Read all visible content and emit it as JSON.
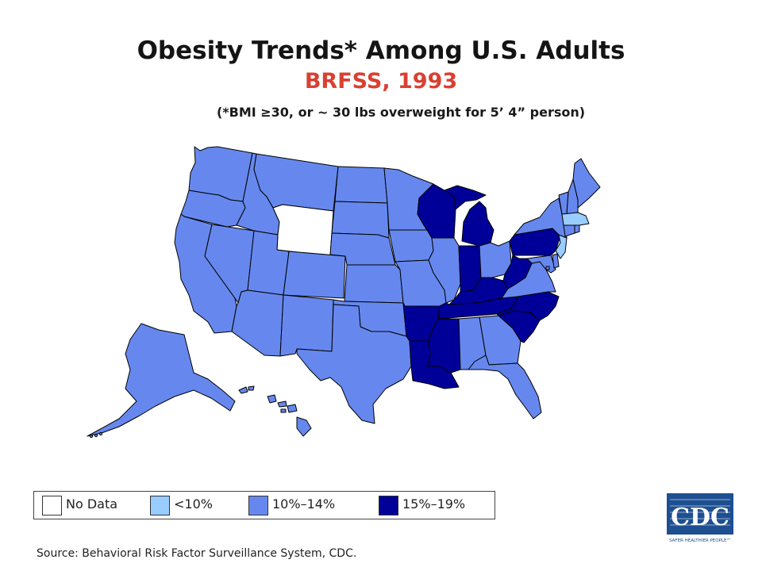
{
  "title": "Obesity Trends* Among U.S. Adults",
  "subtitle": "BRFSS, 1993",
  "note": "(*BMI ≥30, or ~ 30 lbs overweight for 5’ 4” person)",
  "legend": [
    {
      "label": "No Data",
      "color": "#ffffff"
    },
    {
      "label": "<10%",
      "color": "#99ccff"
    },
    {
      "label": "10%–14%",
      "color": "#6688ee"
    },
    {
      "label": "15%–19%",
      "color": "#000099"
    }
  ],
  "categories": {
    "no_data": "#ffffff",
    "lt10": "#99ccff",
    "p10_14": "#6688ee",
    "p15_19": "#000099"
  },
  "states": {
    "WA": "p10_14",
    "OR": "p10_14",
    "CA": "p10_14",
    "NV": "p10_14",
    "ID": "p10_14",
    "MT": "p10_14",
    "WY": "no_data",
    "UT": "p10_14",
    "CO": "p10_14",
    "AZ": "p10_14",
    "NM": "p10_14",
    "ND": "p10_14",
    "SD": "p10_14",
    "NE": "p10_14",
    "KS": "p10_14",
    "OK": "p10_14",
    "TX": "p10_14",
    "MN": "p10_14",
    "IA": "p10_14",
    "MO": "p10_14",
    "AR": "p15_19",
    "LA": "p15_19",
    "WI": "p15_19",
    "IL": "p10_14",
    "MI": "p15_19",
    "IN": "p15_19",
    "OH": "p10_14",
    "KY": "p15_19",
    "TN": "p15_19",
    "MS": "p15_19",
    "AL": "p10_14",
    "GA": "p10_14",
    "FL": "p10_14",
    "SC": "p15_19",
    "NC": "p15_19",
    "VA": "p10_14",
    "WV": "p15_19",
    "MD": "p10_14",
    "DE": "p10_14",
    "PA": "p15_19",
    "NJ": "lt10",
    "NY": "p10_14",
    "CT": "p10_14",
    "RI": "p10_14",
    "MA": "lt10",
    "VT": "p10_14",
    "NH": "p10_14",
    "ME": "p10_14",
    "AK": "p10_14",
    "HI": "p10_14",
    "DC": "p10_14"
  },
  "source": "Source: Behavioral Risk Factor Surveillance System, CDC.",
  "logo": {
    "text": "CDC",
    "tagline": "SAFER·HEALTHIER·PEOPLE™",
    "color": "#1d4f91"
  }
}
